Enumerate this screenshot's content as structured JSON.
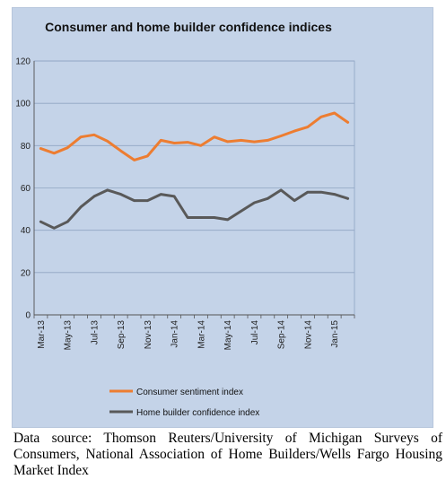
{
  "chart_data": {
    "type": "line",
    "title": "Consumer and home builder confidence indices",
    "x_tick_labels": [
      "Mar-13",
      "May-13",
      "Jul-13",
      "Sep-13",
      "Nov-13",
      "Jan-14",
      "Mar-14",
      "May-14",
      "Jul-14",
      "Sep-14",
      "Nov-14",
      "Jan-15"
    ],
    "x": [
      "Mar-13",
      "Apr-13",
      "May-13",
      "Jun-13",
      "Jul-13",
      "Aug-13",
      "Sep-13",
      "Oct-13",
      "Nov-13",
      "Dec-13",
      "Jan-14",
      "Feb-14",
      "Mar-14",
      "Apr-14",
      "May-14",
      "Jun-14",
      "Jul-14",
      "Aug-14",
      "Sep-14",
      "Oct-14",
      "Nov-14",
      "Dec-14",
      "Jan-15",
      "Feb-15"
    ],
    "ylim": [
      0,
      120
    ],
    "y_ticks": [
      "0",
      "20",
      "40",
      "60",
      "80",
      "100",
      "120"
    ],
    "grid": true,
    "legend_position": "bottom",
    "series": [
      {
        "name": "Consumer sentiment index",
        "color": "#ed7d31",
        "values": [
          78.6,
          76.4,
          79.0,
          84.1,
          85.1,
          82.1,
          77.5,
          73.2,
          75.1,
          82.5,
          81.2,
          81.6,
          80.0,
          84.1,
          81.9,
          82.5,
          81.8,
          82.5,
          84.6,
          86.9,
          88.8,
          93.6,
          95.4,
          91.0
        ]
      },
      {
        "name": "Home builder confidence index",
        "color": "#595959",
        "values": [
          44,
          41,
          44,
          51,
          56,
          59,
          57,
          54,
          54,
          57,
          56,
          46,
          46,
          46,
          45,
          49,
          53,
          55,
          59,
          54,
          58,
          58,
          57,
          55
        ]
      }
    ],
    "xlabel": "",
    "ylabel": ""
  },
  "source_note": "Data source: Thomson Reuters/University of Michigan Surveys of Consumers, National Association of Home Builders/Wells Fargo Housing Market Index"
}
